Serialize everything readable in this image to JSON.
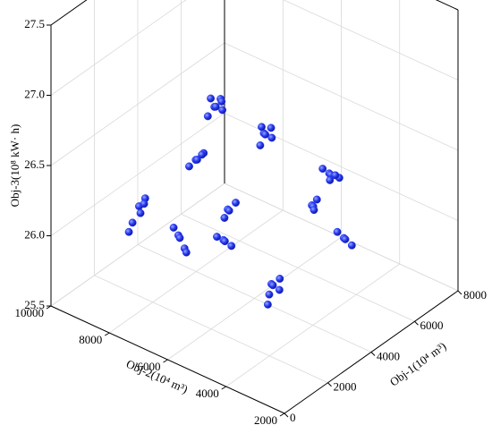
{
  "chart_data": {
    "type": "scatter3d",
    "xlabel": "Obj-1(10⁴ m³)",
    "ylabel": "Obj-2(10⁴ m³)",
    "zlabel": "Obj-3(10⁸ kW· h)",
    "xlim": [
      0,
      8000
    ],
    "ylim": [
      2000,
      10000
    ],
    "zlim": [
      25.5,
      27.5
    ],
    "xticks": [
      0,
      2000,
      4000,
      6000,
      8000
    ],
    "yticks": [
      2000,
      4000,
      6000,
      8000,
      10000
    ],
    "zticks": [
      25.5,
      {
        "value": 26,
        "label": "26.0"
      },
      26.5,
      {
        "value": 27,
        "label": "27.0"
      },
      27.5
    ],
    "grid": true,
    "color": "#2a3cf0",
    "x": [
      3900,
      4100,
      4000,
      4200,
      3800,
      4050,
      4300,
      4700,
      4900,
      5000,
      4800,
      4600,
      5100,
      2300,
      2500,
      2600,
      2200,
      2450,
      6300,
      6500,
      6700,
      6200,
      6600,
      6450,
      1100,
      1300,
      1000,
      1250,
      1400,
      900,
      5500,
      5700,
      5600,
      5800,
      1500,
      1700,
      1650,
      1550,
      1800,
      2700,
      2900,
      3000,
      2750,
      2300,
      2500,
      2600,
      2200,
      5900,
      6100,
      6200,
      5800,
      3100,
      3300,
      3400,
      3200,
      3000,
      3350
    ],
    "y": [
      7300,
      7400,
      7500,
      7250,
      7450,
      7200,
      7350,
      6200,
      6300,
      6150,
      6350,
      6250,
      6250,
      6750,
      6850,
      6700,
      6900,
      6650,
      5150,
      5250,
      5100,
      5300,
      5350,
      5050,
      7800,
      7900,
      7950,
      7700,
      7850,
      8000,
      5150,
      5250,
      5050,
      5300,
      6750,
      6850,
      6650,
      6950,
      6700,
      5950,
      6050,
      5900,
      6100,
      5800,
      5900,
      5750,
      5950,
      4350,
      4450,
      4300,
      4500,
      4750,
      4850,
      4700,
      4900,
      4800,
      4650
    ],
    "z": [
      26.75,
      26.72,
      26.78,
      26.7,
      26.68,
      26.8,
      26.74,
      26.58,
      26.54,
      26.52,
      26.6,
      26.5,
      26.57,
      26.6,
      26.57,
      26.62,
      26.55,
      26.63,
      26.22,
      26.18,
      26.15,
      26.25,
      26.12,
      26.2,
      26.3,
      26.22,
      26.18,
      26.35,
      26.28,
      26.12,
      26.08,
      26.04,
      26.12,
      26.0,
      26.15,
      26.1,
      26.05,
      26.18,
      26.0,
      26.28,
      26.24,
      26.3,
      26.2,
      26.12,
      26.08,
      26.05,
      26.14,
      25.88,
      25.84,
      25.8,
      25.92,
      25.82,
      25.78,
      25.75,
      25.72,
      25.68,
      25.84
    ]
  }
}
